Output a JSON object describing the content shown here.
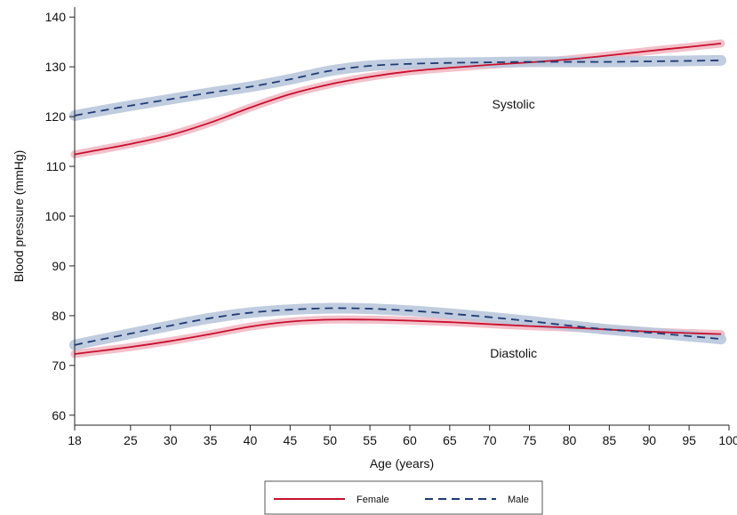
{
  "chart_data": {
    "type": "line",
    "title": "",
    "xlabel": "Age (years)",
    "ylabel": "Blood pressure (mmHg)",
    "xlim": [
      18,
      100
    ],
    "ylim": [
      58,
      142
    ],
    "x_ticks": [
      18,
      25,
      30,
      35,
      40,
      45,
      50,
      55,
      60,
      65,
      70,
      75,
      80,
      85,
      90,
      95,
      100
    ],
    "y_ticks": [
      60,
      70,
      80,
      90,
      100,
      110,
      120,
      130,
      140
    ],
    "grid": false,
    "legend": {
      "placement": "bottom",
      "entries": [
        "Female",
        "Male"
      ]
    },
    "annotations": [
      {
        "text": "Systolic",
        "x": 73,
        "y": 122.5
      },
      {
        "text": "Diastolic",
        "x": 73,
        "y": 72.5
      }
    ],
    "colors": {
      "female": "#c8102e",
      "female_band": "#f2b9c4",
      "male": "#1f3b73",
      "male_band": "#b9c7dc"
    },
    "x": [
      18,
      20,
      25,
      30,
      35,
      40,
      45,
      50,
      55,
      60,
      65,
      70,
      75,
      80,
      85,
      90,
      95,
      99
    ],
    "series": [
      {
        "name": "Female",
        "measure": "Systolic",
        "style": "solid",
        "values": [
          112.4,
          113.0,
          114.5,
          116.3,
          118.8,
          121.8,
          124.5,
          126.5,
          128.0,
          129.1,
          129.8,
          130.4,
          130.9,
          131.5,
          132.3,
          133.2,
          134.0,
          134.7
        ]
      },
      {
        "name": "Male",
        "measure": "Systolic",
        "style": "dashed",
        "values": [
          120.2,
          120.8,
          122.2,
          123.5,
          124.8,
          126.0,
          127.5,
          129.2,
          130.2,
          130.6,
          130.8,
          130.9,
          131.0,
          131.0,
          131.0,
          131.1,
          131.2,
          131.3
        ]
      },
      {
        "name": "Female",
        "measure": "Diastolic",
        "style": "solid",
        "values": [
          72.3,
          72.7,
          73.7,
          74.9,
          76.3,
          77.8,
          78.8,
          79.2,
          79.2,
          79.0,
          78.7,
          78.3,
          77.9,
          77.6,
          77.2,
          76.8,
          76.5,
          76.3
        ]
      },
      {
        "name": "Male",
        "measure": "Diastolic",
        "style": "dashed",
        "values": [
          74.1,
          74.8,
          76.4,
          78.0,
          79.5,
          80.6,
          81.2,
          81.5,
          81.4,
          81.0,
          80.4,
          79.7,
          78.9,
          78.0,
          77.2,
          76.6,
          75.9,
          75.3
        ]
      }
    ]
  }
}
